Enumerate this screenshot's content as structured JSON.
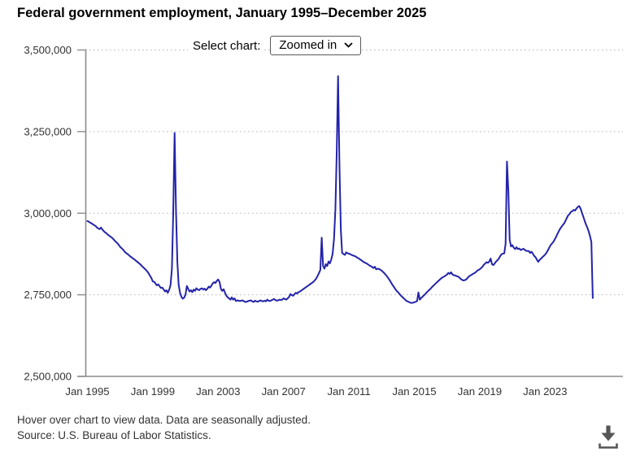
{
  "title": "Federal government employment, January 1995–December 2025",
  "controls": {
    "select_label": "Select chart:",
    "select_value": "Zoomed in"
  },
  "footer": {
    "line1": "Hover over chart to view data. Data are seasonally adjusted.",
    "line2": "Source: U.S. Bureau of Labor Statistics."
  },
  "colors": {
    "line": "#2323aa",
    "axis": "#8c8c8c",
    "grid": "#b8b8b8",
    "text": "#333333",
    "icon": "#555555"
  },
  "chart_data": {
    "type": "line",
    "title": "Federal government employment, January 1995–December 2025",
    "frequency": "monthly",
    "start_year": 1995,
    "end": "December 2025",
    "x_ticks": [
      "Jan 1995",
      "Jan 1999",
      "Jan 2003",
      "Jan 2007",
      "Jan 2011",
      "Jan 2015",
      "Jan 2019",
      "Jan 2023"
    ],
    "x_tick_years": [
      1995,
      1999,
      2003,
      2007,
      2011,
      2015,
      2019,
      2023
    ],
    "y_ticks": [
      "3,500,000",
      "3,250,000",
      "3,000,000",
      "2,750,000",
      "2,500,000"
    ],
    "y_tick_values": [
      3500000,
      3250000,
      3000000,
      2750000,
      2500000
    ],
    "ylim": [
      2500000,
      3500000
    ],
    "grid": "horizontal-dotted",
    "legend": "none",
    "series": [
      {
        "name": "Federal government employment, seasonally adjusted",
        "values": [
          2976000,
          2974000,
          2971000,
          2969000,
          2966000,
          2963000,
          2961000,
          2956000,
          2953000,
          2951000,
          2956000,
          2950000,
          2945000,
          2941000,
          2938000,
          2934000,
          2931000,
          2928000,
          2925000,
          2921000,
          2916000,
          2912000,
          2908000,
          2903000,
          2897000,
          2893000,
          2889000,
          2884000,
          2879000,
          2876000,
          2873000,
          2869000,
          2866000,
          2863000,
          2860000,
          2857000,
          2853000,
          2850000,
          2846000,
          2843000,
          2838000,
          2834000,
          2830000,
          2826000,
          2821000,
          2815000,
          2808000,
          2801000,
          2791000,
          2790000,
          2784000,
          2779000,
          2782000,
          2776000,
          2771000,
          2772000,
          2766000,
          2760000,
          2764000,
          2756000,
          2765000,
          2780000,
          2830000,
          3000000,
          3246000,
          3010000,
          2850000,
          2780000,
          2756000,
          2744000,
          2738000,
          2741000,
          2750000,
          2777000,
          2768000,
          2760000,
          2764000,
          2758000,
          2766000,
          2762000,
          2770000,
          2766000,
          2764000,
          2768000,
          2770000,
          2766000,
          2769000,
          2764000,
          2768000,
          2775000,
          2772000,
          2778000,
          2785000,
          2789000,
          2786000,
          2793000,
          2797000,
          2789000,
          2768000,
          2762000,
          2767000,
          2756000,
          2747000,
          2742000,
          2739000,
          2735000,
          2742000,
          2735000,
          2739000,
          2731000,
          2733000,
          2732000,
          2731000,
          2732000,
          2733000,
          2730000,
          2728000,
          2729000,
          2731000,
          2732000,
          2733000,
          2730000,
          2728000,
          2732000,
          2730000,
          2729000,
          2731000,
          2733000,
          2731000,
          2730000,
          2732000,
          2730000,
          2735000,
          2732000,
          2731000,
          2733000,
          2735000,
          2737000,
          2734000,
          2732000,
          2733000,
          2735000,
          2734000,
          2735000,
          2739000,
          2737000,
          2735000,
          2739000,
          2743000,
          2752000,
          2749000,
          2747000,
          2752000,
          2756000,
          2754000,
          2758000,
          2760000,
          2763000,
          2766000,
          2769000,
          2772000,
          2775000,
          2778000,
          2781000,
          2784000,
          2787000,
          2790000,
          2795000,
          2800000,
          2808000,
          2817000,
          2826000,
          2925000,
          2838000,
          2830000,
          2844000,
          2838000,
          2852000,
          2846000,
          2858000,
          2875000,
          2920000,
          3010000,
          3180000,
          3420000,
          3150000,
          2950000,
          2878000,
          2875000,
          2872000,
          2880000,
          2877000,
          2876000,
          2874000,
          2872000,
          2870000,
          2869000,
          2867000,
          2864000,
          2862000,
          2859000,
          2856000,
          2853000,
          2850000,
          2848000,
          2846000,
          2843000,
          2840000,
          2838000,
          2835000,
          2832000,
          2836000,
          2828000,
          2830000,
          2829000,
          2827000,
          2824000,
          2820000,
          2816000,
          2811000,
          2806000,
          2800000,
          2794000,
          2787000,
          2780000,
          2774000,
          2768000,
          2762000,
          2758000,
          2753000,
          2748000,
          2744000,
          2740000,
          2736000,
          2732000,
          2730000,
          2728000,
          2726000,
          2725000,
          2726000,
          2727000,
          2729000,
          2731000,
          2757000,
          2735000,
          2740000,
          2744000,
          2748000,
          2752000,
          2757000,
          2761000,
          2765000,
          2769000,
          2774000,
          2778000,
          2782000,
          2786000,
          2790000,
          2794000,
          2798000,
          2801000,
          2804000,
          2806000,
          2809000,
          2812000,
          2817000,
          2814000,
          2819000,
          2812000,
          2810000,
          2809000,
          2807000,
          2806000,
          2803000,
          2799000,
          2796000,
          2794000,
          2795000,
          2797000,
          2801000,
          2806000,
          2809000,
          2811000,
          2814000,
          2816000,
          2819000,
          2823000,
          2826000,
          2828000,
          2832000,
          2836000,
          2842000,
          2846000,
          2850000,
          2848000,
          2852000,
          2861000,
          2844000,
          2841000,
          2846000,
          2852000,
          2856000,
          2861000,
          2868000,
          2874000,
          2876000,
          2877000,
          2906000,
          3158000,
          3068000,
          2919000,
          2898000,
          2902000,
          2894000,
          2890000,
          2896000,
          2890000,
          2892000,
          2887000,
          2889000,
          2891000,
          2888000,
          2885000,
          2884000,
          2884000,
          2878000,
          2882000,
          2876000,
          2869000,
          2865000,
          2857000,
          2851000,
          2857000,
          2861000,
          2865000,
          2869000,
          2873000,
          2879000,
          2886000,
          2894000,
          2902000,
          2907000,
          2912000,
          2919000,
          2927000,
          2936000,
          2944000,
          2952000,
          2958000,
          2964000,
          2969000,
          2977000,
          2986000,
          2994000,
          2998000,
          3004000,
          3006000,
          3010000,
          3008000,
          3014000,
          3019000,
          3022000,
          3014000,
          3002000,
          2990000,
          2977000,
          2965000,
          2956000,
          2944000,
          2929000,
          2912000,
          2740000
        ]
      }
    ]
  }
}
